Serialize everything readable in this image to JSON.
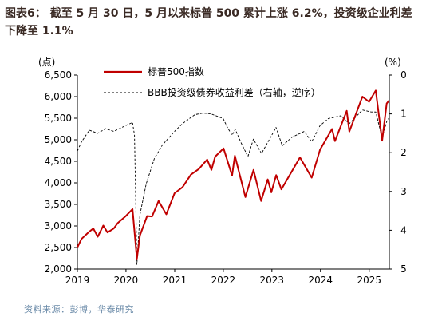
{
  "header": {
    "title": "图表6： 截至 5 月 30 日，5 月以来标普 500 累计上涨 6.2%，投资级企业利差下降至 1.1%"
  },
  "footer": {
    "source": "资料来源：彭博，华泰研究"
  },
  "colors": {
    "sp500": "#c00000",
    "spread": "#000000",
    "title": "#3a2a24",
    "source": "#6a8aa8"
  },
  "chart_data": {
    "type": "line",
    "left_axis": {
      "unit": "(点)",
      "range": [
        2000,
        6500
      ],
      "ticks": [
        2000,
        2500,
        3000,
        3500,
        4000,
        4500,
        5000,
        5500,
        6000,
        6500
      ]
    },
    "right_axis": {
      "unit": "(%)",
      "range": [
        0,
        5
      ],
      "inverted": true,
      "ticks": [
        0,
        1,
        2,
        3,
        4,
        5
      ]
    },
    "x_axis": {
      "range": [
        "2019-01-01",
        "2025-06-01"
      ],
      "tick_labels": [
        "2019",
        "2020",
        "2021",
        "2022",
        "2023",
        "2024",
        "2025"
      ]
    },
    "grid": false,
    "legend_position": "top-center",
    "series": [
      {
        "name": "标普500指数",
        "axis": "left",
        "style": "solid",
        "points": [
          [
            "2019-01-02",
            2510
          ],
          [
            "2019-02-01",
            2700
          ],
          [
            "2019-04-01",
            2870
          ],
          [
            "2019-05-01",
            2940
          ],
          [
            "2019-06-03",
            2750
          ],
          [
            "2019-07-15",
            3010
          ],
          [
            "2019-08-15",
            2850
          ],
          [
            "2019-10-01",
            2940
          ],
          [
            "2019-11-01",
            3070
          ],
          [
            "2019-12-31",
            3230
          ],
          [
            "2020-02-19",
            3390
          ],
          [
            "2020-03-23",
            2240
          ],
          [
            "2020-04-15",
            2780
          ],
          [
            "2020-06-08",
            3230
          ],
          [
            "2020-07-15",
            3220
          ],
          [
            "2020-09-02",
            3580
          ],
          [
            "2020-10-30",
            3270
          ],
          [
            "2020-12-31",
            3760
          ],
          [
            "2021-03-01",
            3900
          ],
          [
            "2021-05-03",
            4190
          ],
          [
            "2021-07-01",
            4320
          ],
          [
            "2021-09-02",
            4540
          ],
          [
            "2021-10-04",
            4300
          ],
          [
            "2021-11-01",
            4610
          ],
          [
            "2022-01-03",
            4800
          ],
          [
            "2022-03-08",
            4170
          ],
          [
            "2022-03-29",
            4630
          ],
          [
            "2022-06-16",
            3670
          ],
          [
            "2022-08-16",
            4300
          ],
          [
            "2022-10-12",
            3580
          ],
          [
            "2022-12-01",
            4080
          ],
          [
            "2022-12-28",
            3780
          ],
          [
            "2023-02-02",
            4180
          ],
          [
            "2023-03-13",
            3850
          ],
          [
            "2023-07-31",
            4590
          ],
          [
            "2023-10-27",
            4120
          ],
          [
            "2023-12-29",
            4770
          ],
          [
            "2024-03-28",
            5250
          ],
          [
            "2024-04-19",
            4970
          ],
          [
            "2024-07-16",
            5670
          ],
          [
            "2024-08-05",
            5190
          ],
          [
            "2024-11-11",
            6000
          ],
          [
            "2024-12-31",
            5880
          ],
          [
            "2025-02-19",
            6140
          ],
          [
            "2025-04-08",
            4980
          ],
          [
            "2025-05-12",
            5840
          ],
          [
            "2025-05-30",
            5910
          ]
        ]
      },
      {
        "name": "BBB投资级债券收益利差（右轴，逆序）",
        "axis": "right",
        "style": "dashed",
        "points": [
          [
            "2019-01-02",
            1.95
          ],
          [
            "2019-02-01",
            1.72
          ],
          [
            "2019-04-01",
            1.42
          ],
          [
            "2019-06-03",
            1.5
          ],
          [
            "2019-08-01",
            1.38
          ],
          [
            "2019-10-01",
            1.45
          ],
          [
            "2019-12-31",
            1.3
          ],
          [
            "2020-02-19",
            1.22
          ],
          [
            "2020-03-05",
            1.55
          ],
          [
            "2020-03-23",
            4.88
          ],
          [
            "2020-04-15",
            3.6
          ],
          [
            "2020-06-01",
            2.8
          ],
          [
            "2020-08-01",
            2.15
          ],
          [
            "2020-10-01",
            1.8
          ],
          [
            "2020-12-31",
            1.45
          ],
          [
            "2021-03-01",
            1.25
          ],
          [
            "2021-06-01",
            1.02
          ],
          [
            "2021-08-01",
            0.98
          ],
          [
            "2021-10-01",
            1.0
          ],
          [
            "2021-12-31",
            1.12
          ],
          [
            "2022-02-01",
            1.35
          ],
          [
            "2022-03-08",
            1.55
          ],
          [
            "2022-04-01",
            1.4
          ],
          [
            "2022-05-15",
            1.75
          ],
          [
            "2022-07-05",
            2.1
          ],
          [
            "2022-08-15",
            1.65
          ],
          [
            "2022-10-15",
            2.02
          ],
          [
            "2022-12-31",
            1.55
          ],
          [
            "2023-02-01",
            1.35
          ],
          [
            "2023-03-20",
            1.82
          ],
          [
            "2023-06-01",
            1.6
          ],
          [
            "2023-09-01",
            1.45
          ],
          [
            "2023-10-27",
            1.72
          ],
          [
            "2023-12-29",
            1.3
          ],
          [
            "2024-03-01",
            1.12
          ],
          [
            "2024-06-01",
            1.05
          ],
          [
            "2024-08-05",
            1.25
          ],
          [
            "2024-11-11",
            0.9
          ],
          [
            "2025-01-15",
            0.95
          ],
          [
            "2025-02-19",
            0.95
          ],
          [
            "2025-04-08",
            1.62
          ],
          [
            "2025-05-12",
            1.2
          ],
          [
            "2025-05-30",
            1.1
          ]
        ]
      }
    ]
  }
}
